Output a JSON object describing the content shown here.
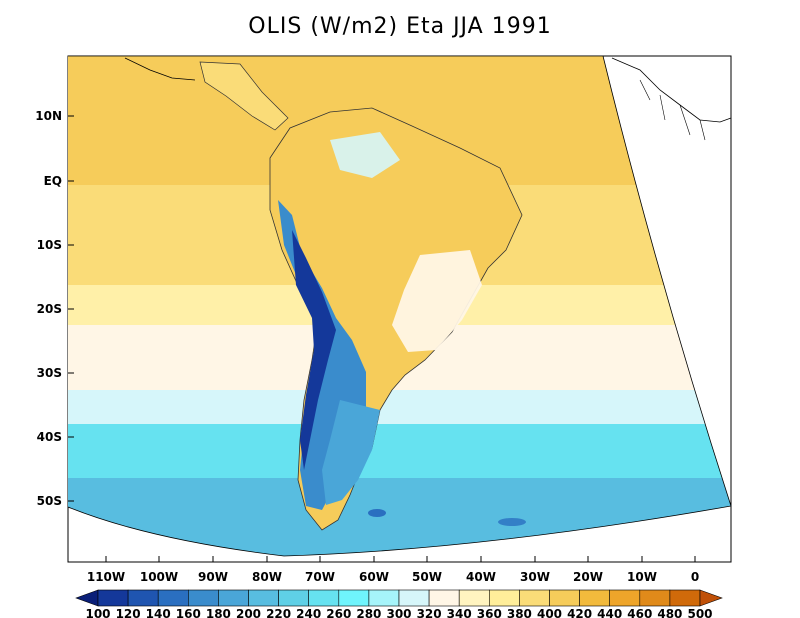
{
  "title": "OLIS (W/m2) Eta JJA 1991",
  "lat_labels": [
    "10N",
    "EQ",
    "10S",
    "20S",
    "30S",
    "40S",
    "50S"
  ],
  "lon_labels": [
    "110W",
    "100W",
    "90W",
    "80W",
    "70W",
    "60W",
    "50W",
    "40W",
    "30W",
    "20W",
    "10W",
    "0"
  ],
  "colorbar": {
    "units": "W/m2",
    "levels": [
      "100",
      "120",
      "140",
      "160",
      "180",
      "200",
      "220",
      "240",
      "260",
      "280",
      "300",
      "320",
      "340",
      "360",
      "380",
      "400",
      "420",
      "440",
      "460",
      "480",
      "500"
    ],
    "colors": [
      "#0a1f78",
      "#14389a",
      "#1f55b0",
      "#2a6fc0",
      "#3a8ccc",
      "#4aa6d8",
      "#58bde0",
      "#5fd0e6",
      "#66e2f0",
      "#6ff4fc",
      "#a6f4fa",
      "#d6f6fa",
      "#fff6e6",
      "#fff4c0",
      "#ffee9a",
      "#fadc78",
      "#f6cc5a",
      "#f2ba3c",
      "#eea52a",
      "#e08a1a",
      "#d06a0a",
      "#c05008"
    ]
  },
  "colors": {
    "frame": "#000000",
    "ocean_north": "#f6cc5a",
    "ocean_mid": "#fadc78",
    "ocean_pale": "#fff6e6",
    "ocean_cyan_light": "#d6f6fa",
    "ocean_cyan": "#66e2f0",
    "ocean_south": "#58bde0",
    "land_dark": "#2a6fc0"
  }
}
